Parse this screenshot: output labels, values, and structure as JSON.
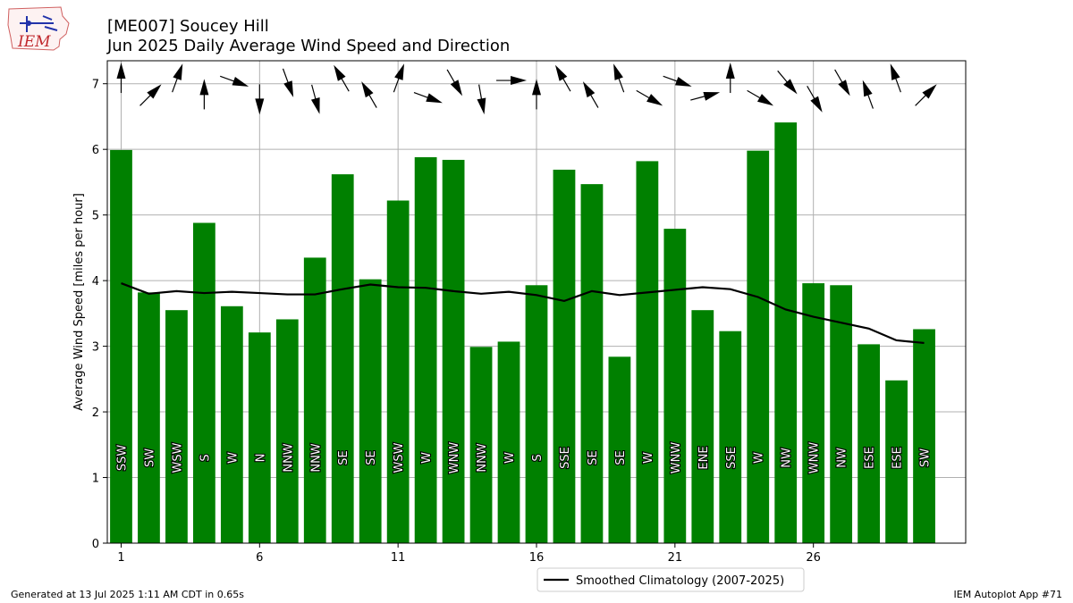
{
  "header": {
    "title_line1": "[ME007] Soucey Hill",
    "title_line2": "Jun 2025 Daily Average Wind Speed and Direction"
  },
  "logo": {
    "text": "IEM",
    "icon": "iem-iowa-logo"
  },
  "footer": {
    "generated": "Generated at 13 Jul 2025 1:11 AM CDT in 0.65s",
    "app": "IEM Autoplot App #71"
  },
  "colors": {
    "bar": "#008000",
    "line": "#000000",
    "grid": "#b0b0b0"
  },
  "chart_data": {
    "type": "bar",
    "ylabel": "Average Wind Speed [miles per hour]",
    "xlabel": "",
    "xlim": [
      0.5,
      31.5
    ],
    "ylim": [
      0,
      7.35
    ],
    "x_ticks": [
      1,
      6,
      11,
      16,
      21,
      26
    ],
    "y_ticks": [
      0,
      1,
      2,
      3,
      4,
      5,
      6,
      7
    ],
    "grid": true,
    "legend_position": "bottom-center",
    "days": [
      1,
      2,
      3,
      4,
      5,
      6,
      7,
      8,
      9,
      10,
      11,
      12,
      13,
      14,
      15,
      16,
      17,
      18,
      19,
      20,
      21,
      22,
      23,
      24,
      25,
      26,
      27,
      28,
      29,
      30
    ],
    "values": [
      5.99,
      3.82,
      3.55,
      4.88,
      3.61,
      3.21,
      3.41,
      4.35,
      5.62,
      4.02,
      5.22,
      5.88,
      5.84,
      2.99,
      3.07,
      3.93,
      5.69,
      5.47,
      2.84,
      5.82,
      4.79,
      3.55,
      3.23,
      5.98,
      6.41,
      3.96,
      3.93,
      3.03,
      2.48,
      3.26
    ],
    "directions": [
      "SSW",
      "SW",
      "WSW",
      "S",
      "W",
      "N",
      "NNW",
      "NNW",
      "SE",
      "SE",
      "WSW",
      "W",
      "WNW",
      "NNW",
      "W",
      "S",
      "SSE",
      "SE",
      "SE",
      "W",
      "WNW",
      "ENE",
      "SSE",
      "W",
      "NW",
      "WNW",
      "NW",
      "ESE",
      "ESE",
      "SW"
    ],
    "series": [
      {
        "name": "Smoothed Climatology (2007-2025)",
        "type": "line",
        "values": [
          3.96,
          3.8,
          3.84,
          3.81,
          3.83,
          3.81,
          3.79,
          3.79,
          3.87,
          3.94,
          3.9,
          3.89,
          3.84,
          3.8,
          3.83,
          3.78,
          3.69,
          3.84,
          3.78,
          3.82,
          3.86,
          3.9,
          3.87,
          3.75,
          3.56,
          3.45,
          3.36,
          3.27,
          3.09,
          3.05
        ]
      }
    ],
    "arrows": {
      "description_units": "degrees arrow points (0 = up)",
      "row_y": [
        7.05,
        6.8
      ],
      "angles": [
        0,
        45,
        20,
        0,
        110,
        180,
        160,
        165,
        330,
        330,
        20,
        110,
        150,
        170,
        90,
        0,
        330,
        330,
        340,
        120,
        110,
        75,
        0,
        120,
        140,
        150,
        150,
        340,
        340,
        45
      ]
    }
  }
}
